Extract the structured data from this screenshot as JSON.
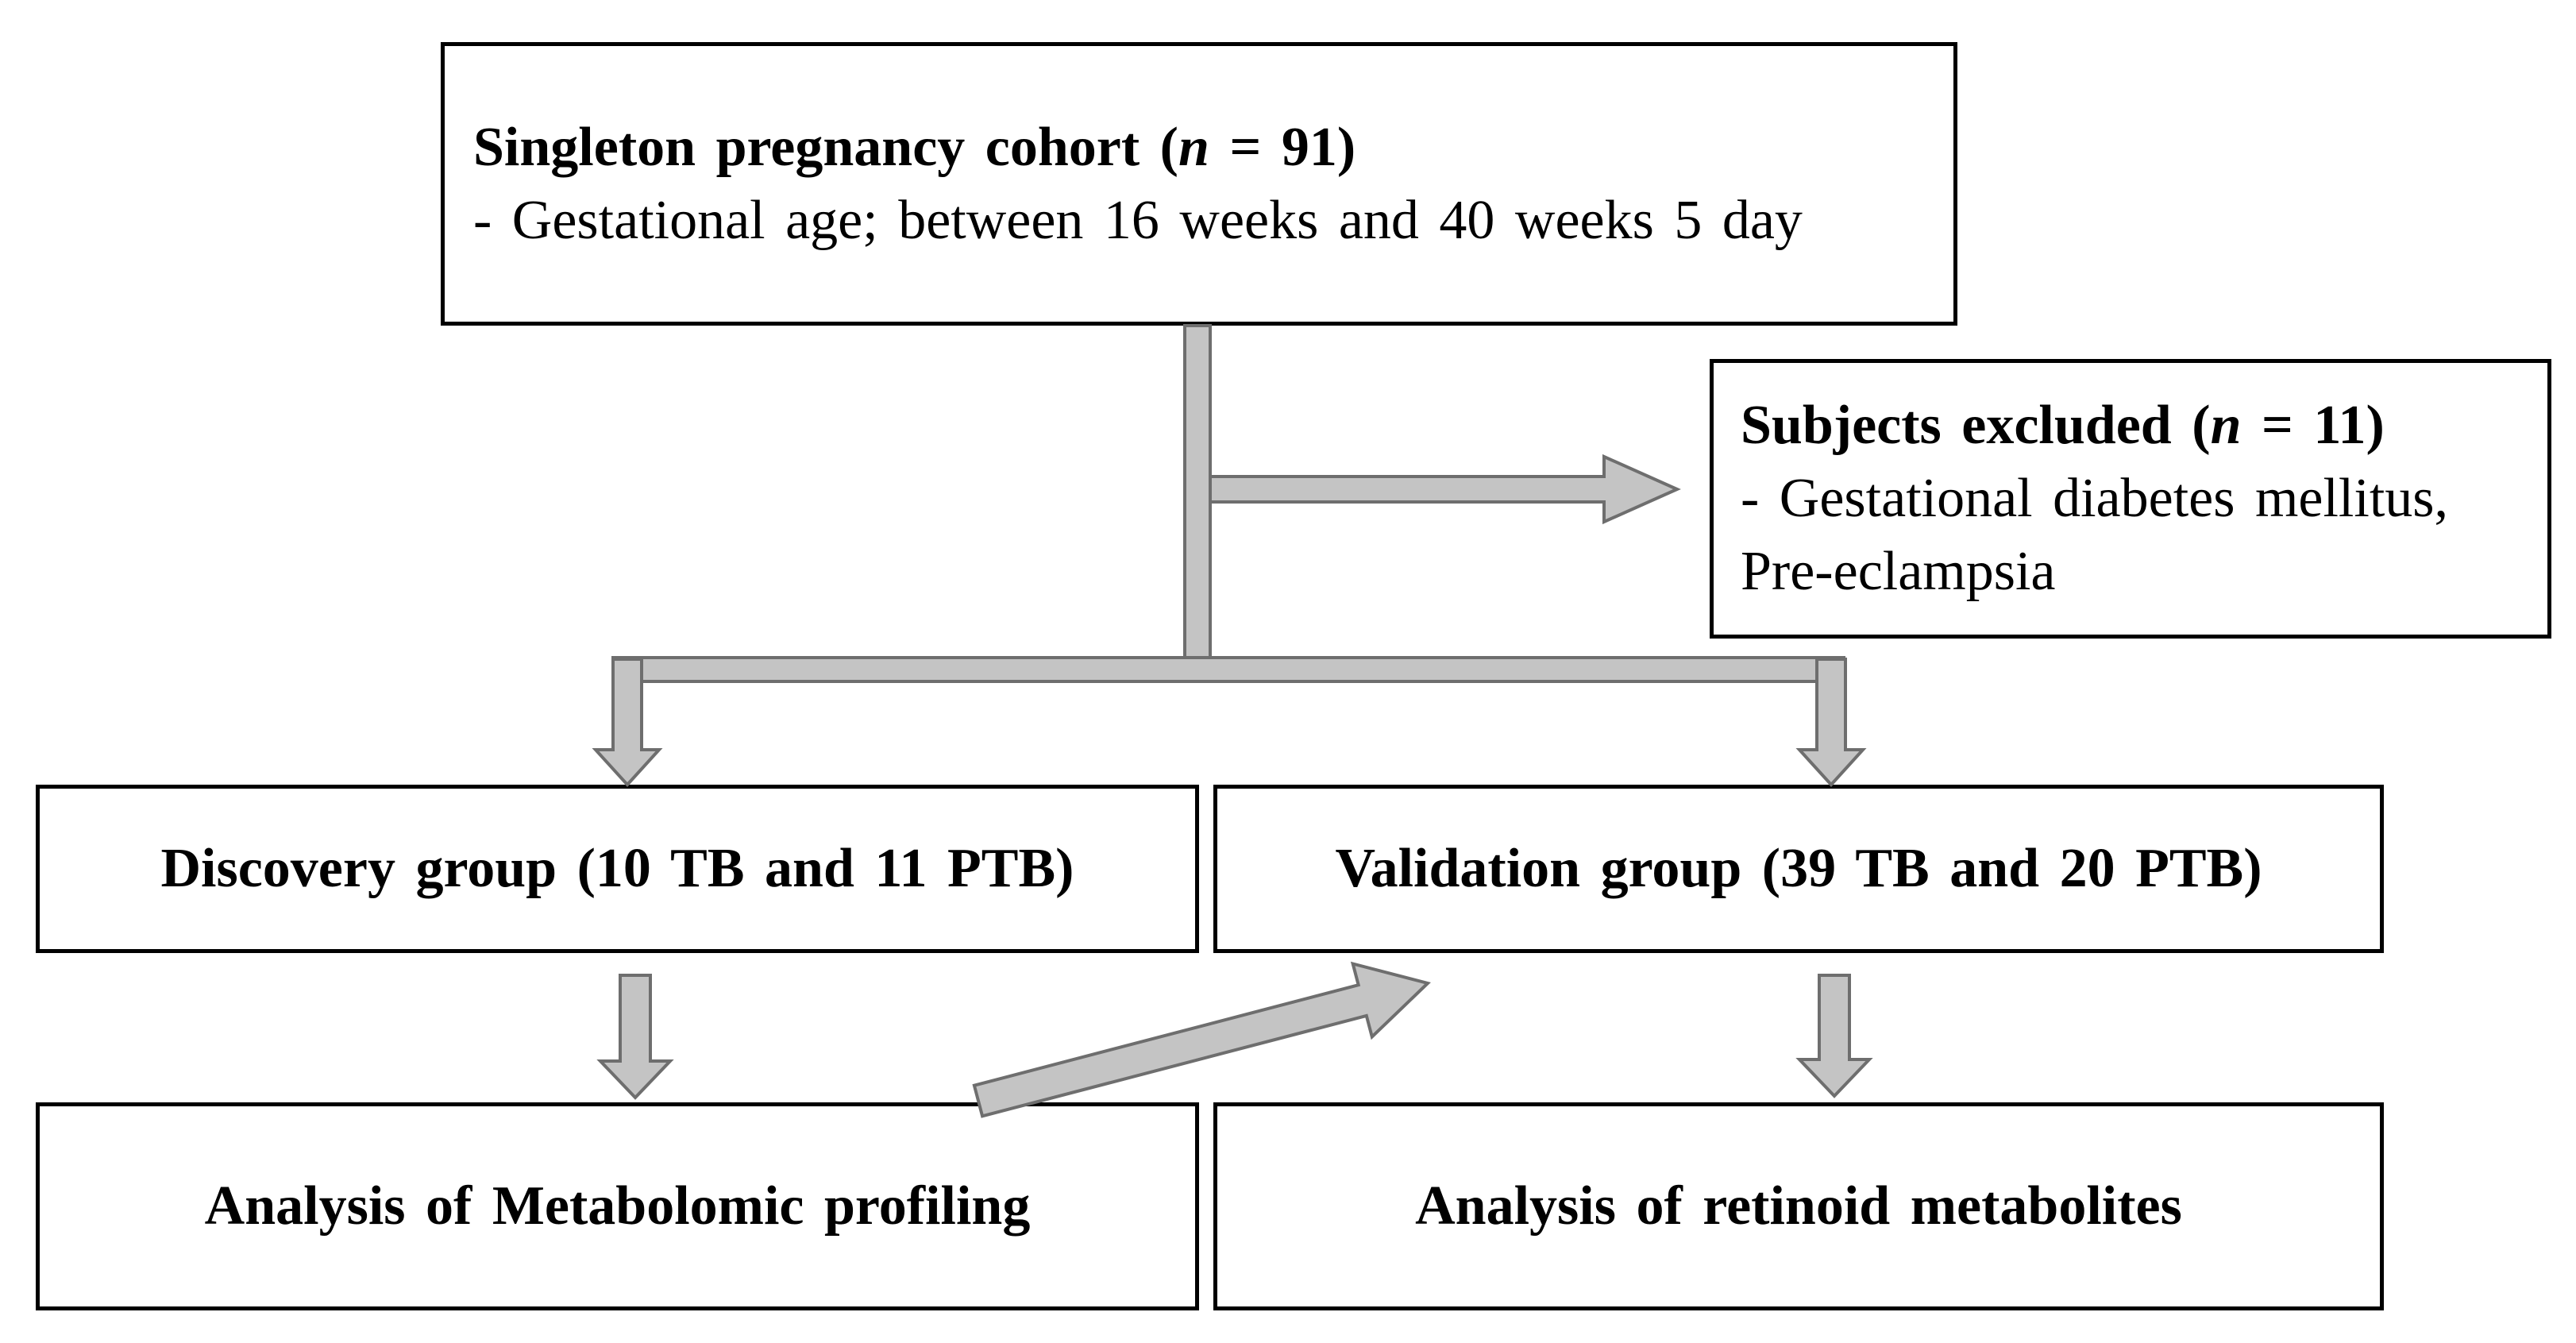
{
  "figure": {
    "kind": "study-flow-diagram"
  },
  "colors": {
    "background": "#ffffff",
    "box_border": "#000000",
    "text": "#000000",
    "arrow_fill": "#c4c4c4",
    "arrow_outline": "#6e6e6e"
  },
  "boxes": {
    "cohort": {
      "title_before_n": "Singleton pregnancy cohort (",
      "n_symbol": "n",
      "title_after_n": " = 91)",
      "subtitle": "- Gestational age; between 16 weeks and 40 weeks 5 day"
    },
    "excluded": {
      "title_before_n": "Subjects excluded (",
      "n_symbol": "n",
      "title_after_n": " = 11)",
      "line1": "- Gestational diabetes mellitus,",
      "line2": "Pre-eclampsia"
    },
    "discovery": {
      "title": "Discovery group (10 TB and 11 PTB)"
    },
    "validation": {
      "title": "Validation group (39 TB and 20 PTB)"
    },
    "metabolomic": {
      "title": "Analysis of Metabolomic profiling"
    },
    "retinoid": {
      "title": "Analysis of retinoid metabolites"
    }
  },
  "connectors": [
    {
      "name": "arrow-cohort-to-excluded"
    },
    {
      "name": "connector-cohort-to-split"
    },
    {
      "name": "connector-split-bar"
    },
    {
      "name": "arrow-split-to-discovery"
    },
    {
      "name": "arrow-split-to-validation"
    },
    {
      "name": "arrow-discovery-to-metabolomic"
    },
    {
      "name": "arrow-validation-to-retinoid"
    },
    {
      "name": "arrow-discovery-to-validation"
    }
  ]
}
